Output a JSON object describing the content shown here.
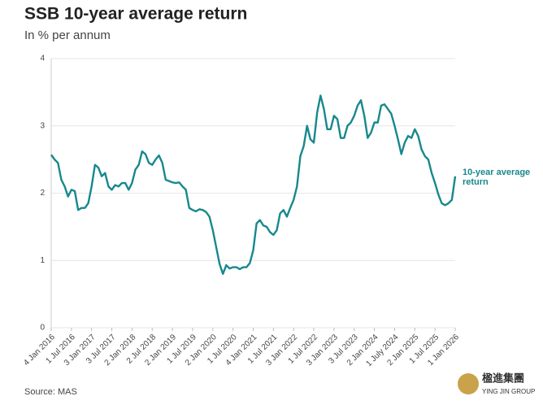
{
  "chart_data": {
    "type": "line",
    "title": "SSB 10-year average return",
    "subtitle": "In % per annum",
    "source": "Source: MAS",
    "annotation": "10-year average return",
    "logo": {
      "name": "楹進集團",
      "subname": "YING JIN GROUP"
    },
    "x": [
      "2016-01",
      "2016-02",
      "2016-03",
      "2016-04",
      "2016-05",
      "2016-06",
      "2016-07",
      "2016-08",
      "2016-09",
      "2016-10",
      "2016-11",
      "2016-12",
      "2017-01",
      "2017-02",
      "2017-03",
      "2017-04",
      "2017-05",
      "2017-06",
      "2017-07",
      "2017-08",
      "2017-09",
      "2017-10",
      "2017-11",
      "2017-12",
      "2018-01",
      "2018-02",
      "2018-03",
      "2018-04",
      "2018-05",
      "2018-06",
      "2018-07",
      "2018-08",
      "2018-09",
      "2018-10",
      "2018-11",
      "2018-12",
      "2019-01",
      "2019-02",
      "2019-03",
      "2019-04",
      "2019-05",
      "2019-06",
      "2019-07",
      "2019-08",
      "2019-09",
      "2019-10",
      "2019-11",
      "2019-12",
      "2020-01",
      "2020-02",
      "2020-03",
      "2020-04",
      "2020-05",
      "2020-06",
      "2020-07",
      "2020-08",
      "2020-09",
      "2020-10",
      "2020-11",
      "2020-12",
      "2021-01",
      "2021-02",
      "2021-03",
      "2021-04",
      "2021-05",
      "2021-06",
      "2021-07",
      "2021-08",
      "2021-09",
      "2021-10",
      "2021-11",
      "2021-12",
      "2022-01",
      "2022-02",
      "2022-03",
      "2022-04",
      "2022-05",
      "2022-06",
      "2022-07",
      "2022-08",
      "2022-09",
      "2022-10",
      "2022-11",
      "2022-12",
      "2023-01",
      "2023-02",
      "2023-03",
      "2023-04",
      "2023-05",
      "2023-06",
      "2023-07",
      "2023-08",
      "2023-09",
      "2023-10",
      "2023-11",
      "2023-12",
      "2024-01",
      "2024-02",
      "2024-03",
      "2024-04",
      "2024-05",
      "2024-06",
      "2024-07",
      "2024-08",
      "2024-09",
      "2024-10",
      "2024-11",
      "2024-12",
      "2025-01",
      "2025-02",
      "2025-03",
      "2025-04",
      "2025-05",
      "2025-06",
      "2025-07",
      "2025-08",
      "2025-09",
      "2025-10",
      "2025-11",
      "2025-12",
      "2026-01"
    ],
    "series": [
      {
        "name": "10-year average return",
        "color": "#17888d",
        "values": [
          2.57,
          2.5,
          2.45,
          2.2,
          2.1,
          1.95,
          2.05,
          2.03,
          1.75,
          1.78,
          1.78,
          1.85,
          2.1,
          2.42,
          2.38,
          2.25,
          2.3,
          2.1,
          2.05,
          2.12,
          2.1,
          2.15,
          2.15,
          2.05,
          2.15,
          2.35,
          2.42,
          2.62,
          2.58,
          2.45,
          2.42,
          2.5,
          2.56,
          2.45,
          2.2,
          2.18,
          2.16,
          2.15,
          2.16,
          2.1,
          2.05,
          1.78,
          1.75,
          1.73,
          1.76,
          1.75,
          1.72,
          1.65,
          1.45,
          1.2,
          0.95,
          0.8,
          0.93,
          0.88,
          0.9,
          0.9,
          0.87,
          0.9,
          0.9,
          0.96,
          1.15,
          1.55,
          1.6,
          1.52,
          1.5,
          1.42,
          1.38,
          1.45,
          1.7,
          1.75,
          1.65,
          1.78,
          1.9,
          2.1,
          2.55,
          2.7,
          3.0,
          2.8,
          2.75,
          3.2,
          3.45,
          3.25,
          2.95,
          2.95,
          3.15,
          3.1,
          2.82,
          2.82,
          3.0,
          3.05,
          3.15,
          3.3,
          3.38,
          3.15,
          2.82,
          2.9,
          3.05,
          3.05,
          3.3,
          3.32,
          3.25,
          3.18,
          3.0,
          2.8,
          2.58,
          2.75,
          2.85,
          2.82,
          2.95,
          2.85,
          2.65,
          2.55,
          2.5,
          2.3,
          2.15,
          1.98,
          1.85,
          1.82,
          1.85,
          1.9,
          2.25
        ]
      }
    ],
    "xlim": [
      "2016-01",
      "2026-01"
    ],
    "xticks": [
      {
        "value": "2016-01",
        "label": "4 Jan 2016"
      },
      {
        "value": "2016-07",
        "label": "1 Jul 2016"
      },
      {
        "value": "2017-01",
        "label": "3 Jan 2017"
      },
      {
        "value": "2017-07",
        "label": "3 Jul 2017"
      },
      {
        "value": "2018-01",
        "label": "2 Jan 2018"
      },
      {
        "value": "2018-07",
        "label": "2 Jul 2018"
      },
      {
        "value": "2019-01",
        "label": "2 Jan 2019"
      },
      {
        "value": "2019-07",
        "label": "1 Jul 2019"
      },
      {
        "value": "2020-01",
        "label": "2 Jan 2020"
      },
      {
        "value": "2020-07",
        "label": "1 Jul 2020"
      },
      {
        "value": "2021-01",
        "label": "4 Jan 2021"
      },
      {
        "value": "2021-07",
        "label": "1 Jul 2021"
      },
      {
        "value": "2022-01",
        "label": "3 Jan 2022"
      },
      {
        "value": "2022-07",
        "label": "1 Jul 2022"
      },
      {
        "value": "2023-01",
        "label": "3 Jan 2023"
      },
      {
        "value": "2023-07",
        "label": "3 Jul 2023"
      },
      {
        "value": "2024-01",
        "label": "2 Jan 2024"
      },
      {
        "value": "2024-07",
        "label": "1 July 2024"
      },
      {
        "value": "2025-01",
        "label": "2 Jan 2025"
      },
      {
        "value": "2025-07",
        "label": "1 Jul 2025"
      },
      {
        "value": "2026-01",
        "label": "1 Jan 2026"
      }
    ],
    "ylim": [
      0,
      4
    ],
    "yticks": [
      0,
      1,
      2,
      3,
      4
    ],
    "grid": true
  }
}
